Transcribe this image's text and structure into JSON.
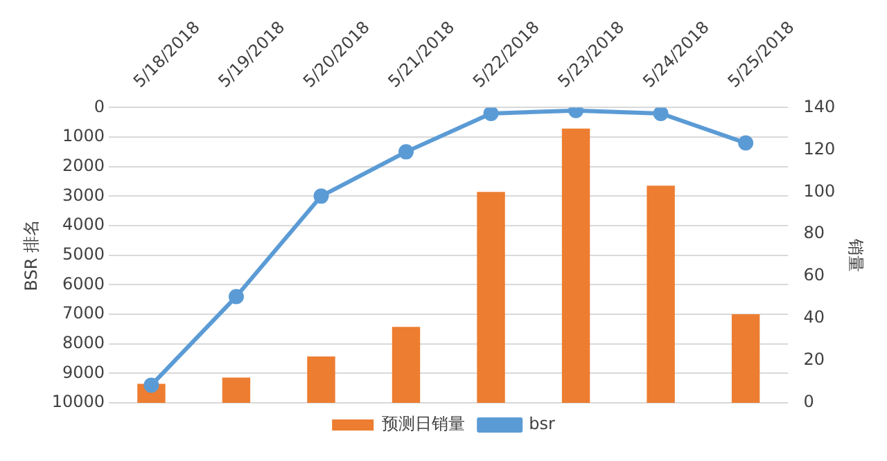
{
  "chart_data": {
    "type": "bar",
    "categories": [
      "5/18/2018",
      "5/19/2018",
      "5/20/2018",
      "5/21/2018",
      "5/22/2018",
      "5/23/2018",
      "5/24/2018",
      "5/25/2018"
    ],
    "ylabel": "BSR 排名",
    "y2label": "销量",
    "ylim": [
      10000,
      0
    ],
    "yticks": [
      0,
      1000,
      2000,
      3000,
      4000,
      5000,
      6000,
      7000,
      8000,
      9000,
      10000
    ],
    "y2lim": [
      0,
      140
    ],
    "y2ticks": [
      0,
      20,
      40,
      60,
      80,
      100,
      120,
      140
    ],
    "series": [
      {
        "name": "预测日销量",
        "axis": "y2",
        "color": "#ed7d31",
        "values": [
          9,
          12,
          22,
          36,
          100,
          130,
          103,
          42
        ]
      },
      {
        "name": "bsr",
        "type": "line",
        "axis": "y",
        "color": "#5b9bd5",
        "values": [
          9400,
          6400,
          3000,
          1500,
          200,
          100,
          200,
          1200
        ]
      }
    ],
    "grid": "y",
    "legend": "bottom",
    "marker": "circle",
    "line_style": "solid"
  }
}
